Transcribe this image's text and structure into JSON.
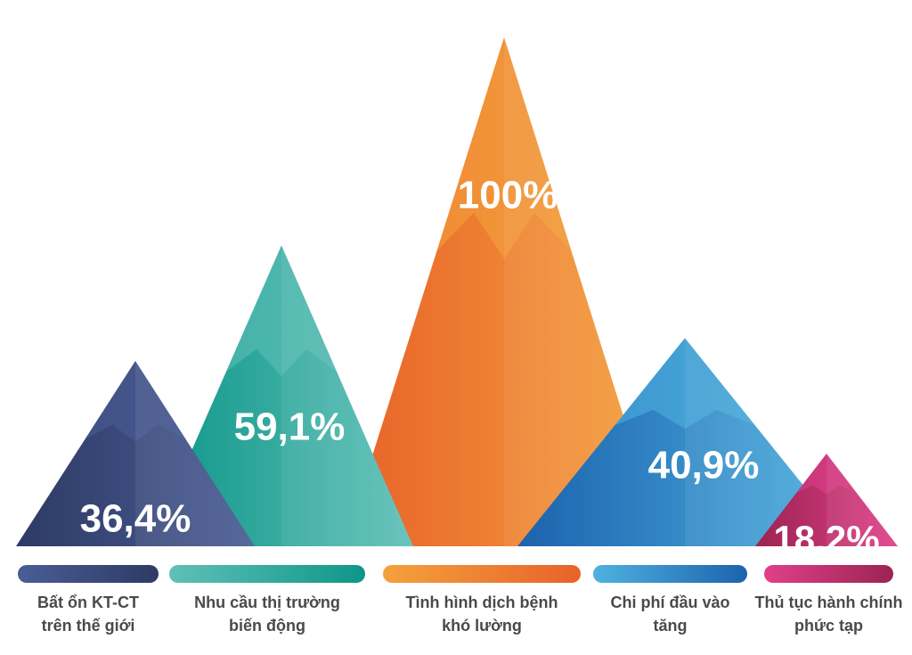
{
  "chart_data": {
    "type": "bar",
    "categories": [
      [
        "Bất ổn KT-CT",
        "trên thế giới"
      ],
      [
        "Nhu cầu thị trường",
        "biến động"
      ],
      [
        "Tình hình dịch bệnh",
        "khó lường"
      ],
      [
        "Chi phí đầu vào",
        "tăng"
      ],
      [
        "Thủ tục hành chính",
        "phức tạp"
      ]
    ],
    "values": [
      36.4,
      59.1,
      100,
      40.9,
      18.2
    ],
    "value_labels": [
      "36,4%",
      "59,1%",
      "100%",
      "40,9%",
      "18,2%"
    ],
    "colors": [
      [
        "#2d3a64",
        "#4a5d96"
      ],
      [
        "#0e9688",
        "#5fc0b8"
      ],
      [
        "#e8622a",
        "#f4a23c"
      ],
      [
        "#1c63ae",
        "#4fb2e0"
      ],
      [
        "#9c2452",
        "#e0408a"
      ]
    ],
    "ylim": [
      0,
      100
    ],
    "grid": false,
    "legend": "bottom"
  }
}
